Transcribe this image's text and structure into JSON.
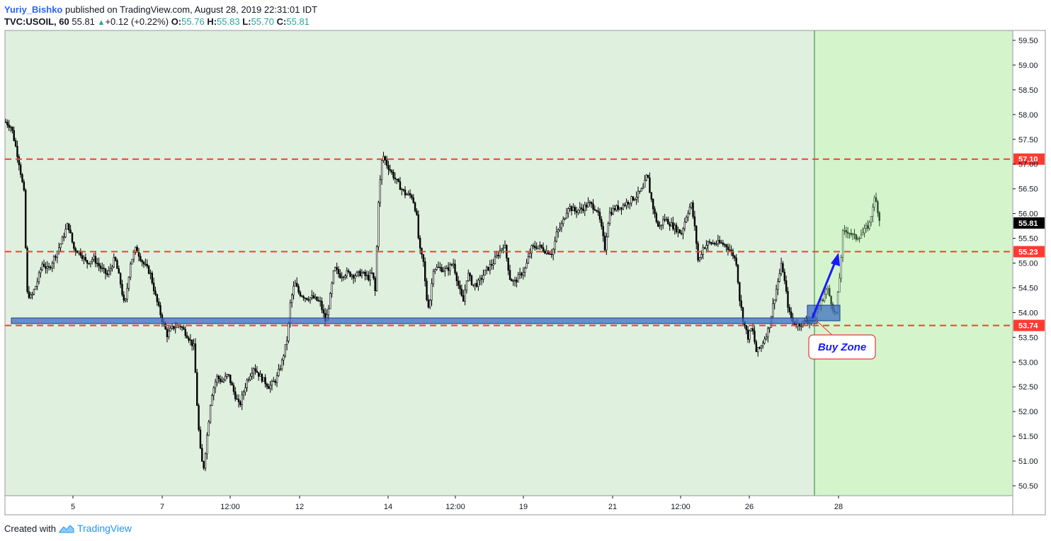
{
  "header": {
    "author": "Yuriy_Bishko",
    "published": "published on TradingView.com, August 28, 2019 22:31:01 IDT",
    "symbol": "TVC:USOIL, 60",
    "last": "55.81",
    "change": "+0.12 (+0.22%)",
    "o_label": "O:",
    "o_val": "55.76",
    "h_label": "H:",
    "h_val": "55.83",
    "l_label": "L:",
    "l_val": "55.70",
    "c_label": "C:",
    "c_val": "55.81"
  },
  "footer": {
    "created_with": "Created with",
    "brand": "TradingView"
  },
  "colors": {
    "bg_history": "#dff0df",
    "bg_future": "#d4f5cb",
    "line": "#ff3b30",
    "zone": "#3d6fc2",
    "arrow": "#1a1aff",
    "candle": "#000000"
  },
  "chart_data": {
    "type": "candlestick",
    "y_ticks": [
      "59.50",
      "59.00",
      "58.50",
      "58.00",
      "57.50",
      "57.00",
      "56.50",
      "56.00",
      "55.50",
      "55.00",
      "54.50",
      "54.00",
      "53.50",
      "53.00",
      "52.50",
      "52.00",
      "51.50",
      "51.00",
      "50.50"
    ],
    "x_ticks": [
      "5",
      "7",
      "12:00",
      "12",
      "14",
      "12:00",
      "19",
      "21",
      "12:00",
      "26",
      "28"
    ],
    "ylim": [
      50.3,
      59.7
    ],
    "levels": [
      {
        "value": 57.1,
        "label": "57.10"
      },
      {
        "value": 55.23,
        "label": "55.23"
      },
      {
        "value": 53.74,
        "label": "53.74"
      }
    ],
    "last_price": {
      "value": 55.81,
      "label": "55.81"
    },
    "annotation": "Buy Zone",
    "path": [
      [
        0,
        57.85
      ],
      [
        8,
        57.75
      ],
      [
        18,
        57.1
      ],
      [
        26,
        56.4
      ],
      [
        30,
        54.4
      ],
      [
        36,
        54.3
      ],
      [
        44,
        54.6
      ],
      [
        52,
        55.0
      ],
      [
        60,
        54.85
      ],
      [
        68,
        55.1
      ],
      [
        78,
        55.4
      ],
      [
        88,
        55.8
      ],
      [
        96,
        55.3
      ],
      [
        106,
        55.2
      ],
      [
        114,
        55.0
      ],
      [
        124,
        55.1
      ],
      [
        134,
        54.9
      ],
      [
        144,
        54.75
      ],
      [
        154,
        55.1
      ],
      [
        162,
        54.6
      ],
      [
        168,
        54.1
      ],
      [
        176,
        55.0
      ],
      [
        184,
        55.3
      ],
      [
        194,
        55.0
      ],
      [
        204,
        54.8
      ],
      [
        212,
        54.3
      ],
      [
        222,
        53.8
      ],
      [
        228,
        53.55
      ],
      [
        236,
        53.7
      ],
      [
        246,
        53.75
      ],
      [
        256,
        53.55
      ],
      [
        266,
        53.3
      ],
      [
        270,
        52.2
      ],
      [
        274,
        51.3
      ],
      [
        279,
        50.8
      ],
      [
        285,
        51.6
      ],
      [
        290,
        52.3
      ],
      [
        298,
        52.7
      ],
      [
        306,
        52.6
      ],
      [
        314,
        52.75
      ],
      [
        322,
        52.4
      ],
      [
        330,
        52.1
      ],
      [
        340,
        52.6
      ],
      [
        350,
        52.9
      ],
      [
        360,
        52.7
      ],
      [
        372,
        52.5
      ],
      [
        382,
        52.65
      ],
      [
        390,
        53.0
      ],
      [
        398,
        53.5
      ],
      [
        402,
        54.2
      ],
      [
        408,
        54.6
      ],
      [
        414,
        54.4
      ],
      [
        424,
        54.3
      ],
      [
        434,
        54.3
      ],
      [
        444,
        54.2
      ],
      [
        452,
        53.8
      ],
      [
        458,
        54.3
      ],
      [
        464,
        54.9
      ],
      [
        472,
        54.75
      ],
      [
        482,
        54.8
      ],
      [
        492,
        54.75
      ],
      [
        502,
        54.8
      ],
      [
        512,
        54.7
      ],
      [
        518,
        54.8
      ],
      [
        522,
        54.4
      ],
      [
        526,
        56.2
      ],
      [
        532,
        57.2
      ],
      [
        538,
        57.0
      ],
      [
        546,
        56.8
      ],
      [
        554,
        56.6
      ],
      [
        564,
        56.4
      ],
      [
        574,
        56.35
      ],
      [
        580,
        56.0
      ],
      [
        584,
        55.3
      ],
      [
        590,
        55.0
      ],
      [
        594,
        54.3
      ],
      [
        598,
        54.1
      ],
      [
        604,
        54.9
      ],
      [
        612,
        54.9
      ],
      [
        622,
        54.85
      ],
      [
        632,
        55.0
      ],
      [
        640,
        54.5
      ],
      [
        646,
        54.2
      ],
      [
        652,
        54.8
      ],
      [
        660,
        54.55
      ],
      [
        668,
        54.6
      ],
      [
        678,
        54.85
      ],
      [
        688,
        55.0
      ],
      [
        696,
        55.2
      ],
      [
        704,
        55.4
      ],
      [
        712,
        54.7
      ],
      [
        718,
        54.6
      ],
      [
        726,
        54.75
      ],
      [
        734,
        54.9
      ],
      [
        742,
        55.3
      ],
      [
        752,
        55.35
      ],
      [
        762,
        55.25
      ],
      [
        772,
        55.2
      ],
      [
        778,
        55.6
      ],
      [
        786,
        55.8
      ],
      [
        794,
        56.15
      ],
      [
        804,
        56.05
      ],
      [
        814,
        56.1
      ],
      [
        824,
        56.2
      ],
      [
        834,
        56.1
      ],
      [
        840,
        55.8
      ],
      [
        846,
        55.3
      ],
      [
        852,
        56.0
      ],
      [
        860,
        56.1
      ],
      [
        870,
        56.15
      ],
      [
        880,
        56.25
      ],
      [
        890,
        56.35
      ],
      [
        900,
        56.5
      ],
      [
        906,
        56.8
      ],
      [
        910,
        56.4
      ],
      [
        916,
        56.0
      ],
      [
        922,
        55.7
      ],
      [
        930,
        55.9
      ],
      [
        938,
        55.8
      ],
      [
        946,
        55.7
      ],
      [
        954,
        55.6
      ],
      [
        962,
        56.0
      ],
      [
        968,
        56.2
      ],
      [
        974,
        55.6
      ],
      [
        978,
        55.0
      ],
      [
        984,
        55.3
      ],
      [
        992,
        55.4
      ],
      [
        1000,
        55.4
      ],
      [
        1010,
        55.4
      ],
      [
        1018,
        55.35
      ],
      [
        1026,
        55.2
      ],
      [
        1032,
        55.0
      ],
      [
        1036,
        54.3
      ],
      [
        1042,
        53.8
      ],
      [
        1048,
        53.5
      ],
      [
        1054,
        53.7
      ],
      [
        1060,
        53.2
      ],
      [
        1066,
        53.3
      ],
      [
        1072,
        53.5
      ],
      [
        1078,
        53.7
      ],
      [
        1084,
        54.2
      ],
      [
        1090,
        54.6
      ],
      [
        1096,
        55.0
      ],
      [
        1100,
        54.6
      ],
      [
        1106,
        54.0
      ],
      [
        1112,
        53.8
      ],
      [
        1118,
        53.75
      ],
      [
        1126,
        53.8
      ],
      [
        1134,
        53.85
      ],
      [
        1142,
        53.95
      ],
      [
        1148,
        54.1
      ],
      [
        1154,
        54.3
      ],
      [
        1160,
        54.5
      ],
      [
        1166,
        54.2
      ],
      [
        1172,
        53.9
      ],
      [
        1178,
        54.8
      ],
      [
        1182,
        55.6
      ],
      [
        1190,
        55.65
      ],
      [
        1200,
        55.5
      ],
      [
        1210,
        55.6
      ],
      [
        1220,
        55.8
      ],
      [
        1226,
        56.3
      ],
      [
        1230,
        56.2
      ],
      [
        1234,
        55.85
      ],
      [
        1240,
        55.81
      ]
    ]
  }
}
